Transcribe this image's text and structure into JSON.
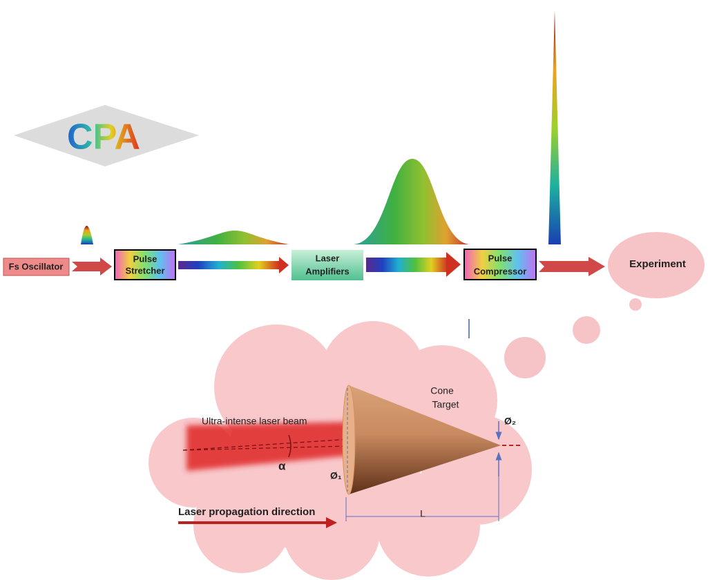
{
  "logo": "CPA",
  "blocks": {
    "oscillator": "Fs Oscillator",
    "stretcher": [
      "Pulse",
      "Stretcher"
    ],
    "amplifiers": [
      "Laser",
      "Amplifiers"
    ],
    "compressor": [
      "Pulse",
      "Compressor"
    ],
    "experiment": "Experiment"
  },
  "target": {
    "cone_label": [
      "Cone",
      "Target"
    ],
    "beam_label": "Ultra-intense laser beam",
    "angle": "α",
    "diameter_1": "Ø₁",
    "diameter_2": "Ø₂",
    "length": "L",
    "direction": "Laser propagation direction"
  }
}
